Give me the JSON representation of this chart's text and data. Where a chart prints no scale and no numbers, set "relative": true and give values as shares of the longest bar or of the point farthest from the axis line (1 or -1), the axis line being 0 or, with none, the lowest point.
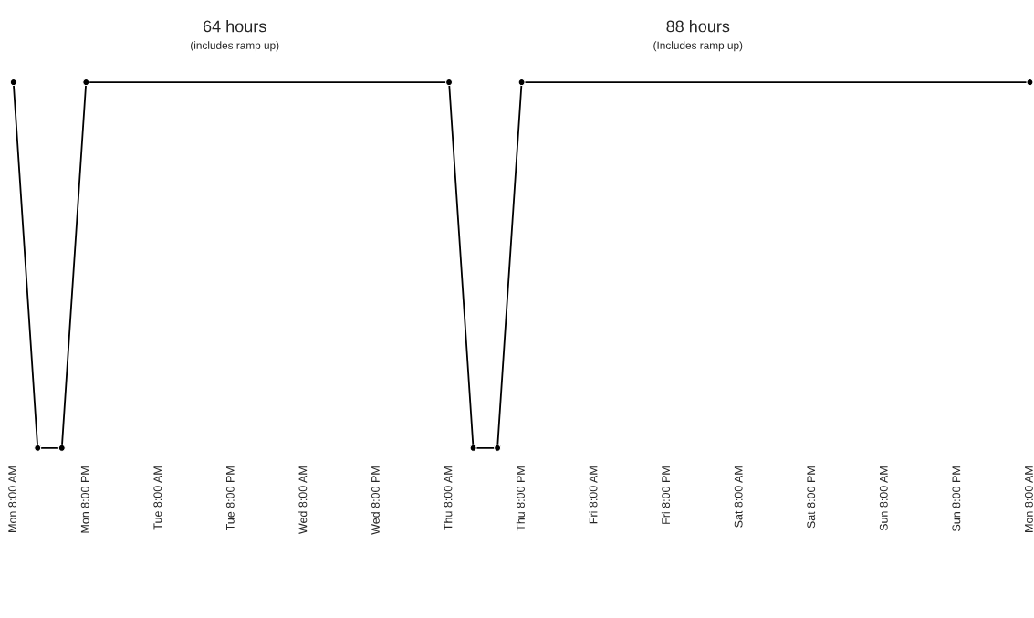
{
  "chart_data": {
    "type": "line",
    "relative": true,
    "categories": [
      "Mon 8:00 AM",
      null,
      null,
      "Mon 8:00 PM",
      null,
      null,
      "Tue 8:00 AM",
      null,
      null,
      "Tue 8:00 PM",
      null,
      null,
      "Wed 8:00 AM",
      null,
      null,
      "Wed 8:00 PM",
      null,
      null,
      "Thu 8:00 AM",
      null,
      null,
      "Thu 8:00 PM",
      null,
      null,
      "Fri 8:00 AM",
      null,
      null,
      "Fri 8:00 PM",
      null,
      null,
      "Sat 8:00 AM",
      null,
      null,
      "Sat 8:00 PM",
      null,
      null,
      "Sun 8:00 AM",
      null,
      null,
      "Sun 8:00 PM",
      null,
      null,
      "Mon 8:00 AM"
    ],
    "series": [
      {
        "color": "#000000",
        "values": [
          1,
          0,
          0,
          1,
          null,
          null,
          null,
          null,
          null,
          null,
          null,
          null,
          null,
          null,
          null,
          null,
          null,
          null,
          1,
          0,
          0,
          1,
          null,
          null,
          null,
          null,
          null,
          null,
          null,
          null,
          null,
          null,
          null,
          null,
          null,
          null,
          null,
          null,
          null,
          null,
          null,
          null,
          1
        ]
      }
    ],
    "marker": "circle",
    "line_style": "solid",
    "grid": false,
    "legend": false,
    "annotations": [
      "64 hours",
      "(includes ramp up)",
      "88 hours",
      "(Includes ramp up)"
    ]
  }
}
